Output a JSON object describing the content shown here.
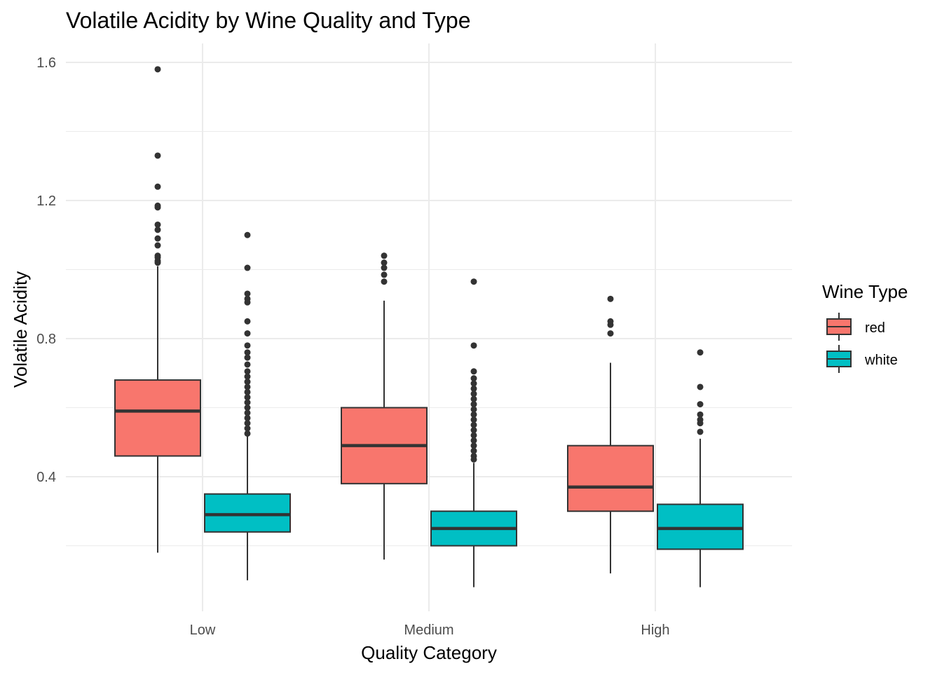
{
  "chart_data": {
    "type": "boxplot",
    "title": "Volatile Acidity by Wine Quality and Type",
    "xlabel": "Quality Category",
    "ylabel": "Volatile Acidity",
    "categories": [
      "Low",
      "Medium",
      "High"
    ],
    "yticks": [
      "0.4",
      "0.8",
      "1.2",
      "1.6"
    ],
    "ylim": [
      0.05,
      1.65
    ],
    "grid": true,
    "legend": {
      "title": "Wine Type",
      "position": "right"
    },
    "series": [
      {
        "name": "red",
        "color": "#F8766D",
        "boxes": [
          {
            "category": "Low",
            "lower_whisker": 0.18,
            "q1": 0.46,
            "median": 0.59,
            "q3": 0.68,
            "upper_whisker": 1.01,
            "outliers": [
              1.58,
              1.33,
              1.24,
              1.185,
              1.18,
              1.13,
              1.115,
              1.09,
              1.07,
              1.04,
              1.035,
              1.025,
              1.02
            ]
          },
          {
            "category": "Medium",
            "lower_whisker": 0.16,
            "q1": 0.38,
            "median": 0.49,
            "q3": 0.6,
            "upper_whisker": 0.91,
            "outliers": [
              1.04,
              1.02,
              1.005,
              0.985,
              0.965
            ]
          },
          {
            "category": "High",
            "lower_whisker": 0.12,
            "q1": 0.3,
            "median": 0.37,
            "q3": 0.49,
            "upper_whisker": 0.73,
            "outliers": [
              0.915,
              0.85,
              0.84,
              0.815
            ]
          }
        ]
      },
      {
        "name": "white",
        "color": "#00BFC4",
        "boxes": [
          {
            "category": "Low",
            "lower_whisker": 0.1,
            "q1": 0.24,
            "median": 0.29,
            "q3": 0.35,
            "upper_whisker": 0.52,
            "outliers": [
              1.1,
              1.005,
              0.93,
              0.915,
              0.905,
              0.85,
              0.815,
              0.78,
              0.76,
              0.745,
              0.725,
              0.705,
              0.69,
              0.675,
              0.66,
              0.645,
              0.63,
              0.615,
              0.6,
              0.585,
              0.57,
              0.555,
              0.54,
              0.525
            ]
          },
          {
            "category": "Medium",
            "lower_whisker": 0.08,
            "q1": 0.2,
            "median": 0.25,
            "q3": 0.3,
            "upper_whisker": 0.44,
            "outliers": [
              0.965,
              0.78,
              0.705,
              0.685,
              0.67,
              0.655,
              0.64,
              0.625,
              0.61,
              0.595,
              0.58,
              0.565,
              0.55,
              0.535,
              0.52,
              0.505,
              0.49,
              0.475,
              0.46,
              0.45
            ]
          },
          {
            "category": "High",
            "lower_whisker": 0.08,
            "q1": 0.19,
            "median": 0.25,
            "q3": 0.32,
            "upper_whisker": 0.51,
            "outliers": [
              0.76,
              0.66,
              0.61,
              0.58,
              0.565,
              0.555,
              0.53
            ]
          }
        ]
      }
    ]
  }
}
